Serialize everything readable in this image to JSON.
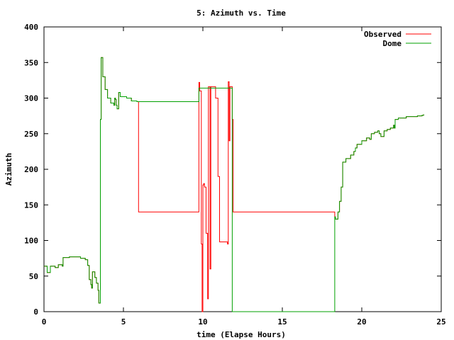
{
  "chart_data": {
    "type": "line",
    "title": "5: Azimuth vs. Time",
    "xlabel": "time (Elapse Hours)",
    "ylabel": "Azimuth",
    "xlim": [
      0,
      25
    ],
    "ylim": [
      0,
      400
    ],
    "x_ticks": [
      0,
      5,
      10,
      15,
      20,
      25
    ],
    "y_ticks": [
      0,
      50,
      100,
      150,
      200,
      250,
      300,
      350,
      400
    ],
    "grid": false,
    "legend": "top-right",
    "series": [
      {
        "name": "Observed",
        "color": "#ff0000",
        "points": [
          [
            0.0,
            64
          ],
          [
            0.2,
            55
          ],
          [
            0.35,
            55
          ],
          [
            0.4,
            64
          ],
          [
            0.6,
            64
          ],
          [
            0.7,
            62
          ],
          [
            0.9,
            66
          ],
          [
            1.1,
            66
          ],
          [
            1.15,
            64
          ],
          [
            1.2,
            76
          ],
          [
            1.6,
            77
          ],
          [
            2.0,
            77
          ],
          [
            2.3,
            75
          ],
          [
            2.6,
            73
          ],
          [
            2.75,
            65
          ],
          [
            2.85,
            45
          ],
          [
            2.95,
            38
          ],
          [
            3.0,
            33
          ],
          [
            3.05,
            56
          ],
          [
            3.2,
            48
          ],
          [
            3.3,
            40
          ],
          [
            3.4,
            30
          ],
          [
            3.45,
            12
          ],
          [
            3.55,
            270
          ],
          [
            3.6,
            357
          ],
          [
            3.7,
            330
          ],
          [
            3.85,
            312
          ],
          [
            4.0,
            300
          ],
          [
            4.2,
            293
          ],
          [
            4.4,
            290
          ],
          [
            4.45,
            300
          ],
          [
            4.5,
            298
          ],
          [
            4.55,
            290
          ],
          [
            4.6,
            285
          ],
          [
            4.7,
            308
          ],
          [
            4.8,
            302
          ],
          [
            5.0,
            302
          ],
          [
            5.2,
            300
          ],
          [
            5.4,
            300
          ],
          [
            5.5,
            296
          ],
          [
            5.85,
            295
          ],
          [
            5.9,
            295
          ],
          [
            5.95,
            140
          ],
          [
            9.7,
            140
          ],
          [
            9.75,
            322
          ],
          [
            9.8,
            310
          ],
          [
            9.9,
            95
          ],
          [
            9.95,
            0
          ],
          [
            10.0,
            178
          ],
          [
            10.05,
            180
          ],
          [
            10.1,
            175
          ],
          [
            10.2,
            110
          ],
          [
            10.3,
            18
          ],
          [
            10.35,
            316
          ],
          [
            10.45,
            60
          ],
          [
            10.5,
            316
          ],
          [
            10.75,
            316
          ],
          [
            10.8,
            300
          ],
          [
            10.95,
            190
          ],
          [
            11.05,
            98
          ],
          [
            11.5,
            98
          ],
          [
            11.55,
            95
          ],
          [
            11.6,
            323
          ],
          [
            11.65,
            240
          ],
          [
            11.7,
            316
          ],
          [
            11.8,
            316
          ],
          [
            11.85,
            270
          ],
          [
            11.9,
            140
          ],
          [
            18.2,
            140
          ],
          [
            18.3,
            133
          ],
          [
            18.35,
            130
          ],
          [
            18.5,
            140
          ],
          [
            18.6,
            155
          ],
          [
            18.7,
            175
          ],
          [
            18.8,
            210
          ],
          [
            19.0,
            215
          ],
          [
            19.3,
            220
          ],
          [
            19.5,
            225
          ],
          [
            19.6,
            230
          ],
          [
            19.7,
            235
          ],
          [
            20.0,
            240
          ],
          [
            20.3,
            244
          ],
          [
            20.5,
            242
          ],
          [
            20.6,
            250
          ],
          [
            20.8,
            252
          ],
          [
            21.0,
            254
          ],
          [
            21.1,
            250
          ],
          [
            21.2,
            246
          ],
          [
            21.4,
            254
          ],
          [
            21.6,
            256
          ],
          [
            21.8,
            258
          ],
          [
            22.0,
            262
          ],
          [
            22.05,
            258
          ],
          [
            22.1,
            270
          ],
          [
            22.3,
            272
          ],
          [
            22.6,
            272
          ],
          [
            22.8,
            274
          ],
          [
            23.2,
            274
          ],
          [
            23.5,
            275
          ],
          [
            23.8,
            276
          ],
          [
            23.9,
            277
          ]
        ]
      },
      {
        "name": "Dome",
        "color": "#00a000",
        "points": [
          [
            0.0,
            64
          ],
          [
            0.2,
            55
          ],
          [
            0.35,
            55
          ],
          [
            0.4,
            64
          ],
          [
            0.6,
            64
          ],
          [
            0.7,
            62
          ],
          [
            0.9,
            66
          ],
          [
            1.1,
            66
          ],
          [
            1.15,
            64
          ],
          [
            1.2,
            76
          ],
          [
            1.6,
            77
          ],
          [
            2.0,
            77
          ],
          [
            2.3,
            75
          ],
          [
            2.6,
            73
          ],
          [
            2.75,
            65
          ],
          [
            2.85,
            45
          ],
          [
            2.95,
            38
          ],
          [
            3.0,
            33
          ],
          [
            3.05,
            56
          ],
          [
            3.2,
            48
          ],
          [
            3.3,
            40
          ],
          [
            3.4,
            30
          ],
          [
            3.45,
            12
          ],
          [
            3.55,
            270
          ],
          [
            3.6,
            357
          ],
          [
            3.7,
            330
          ],
          [
            3.85,
            312
          ],
          [
            4.0,
            300
          ],
          [
            4.2,
            293
          ],
          [
            4.4,
            290
          ],
          [
            4.45,
            300
          ],
          [
            4.5,
            298
          ],
          [
            4.55,
            290
          ],
          [
            4.6,
            285
          ],
          [
            4.7,
            308
          ],
          [
            4.8,
            302
          ],
          [
            5.0,
            302
          ],
          [
            5.2,
            300
          ],
          [
            5.4,
            300
          ],
          [
            5.5,
            296
          ],
          [
            5.85,
            295
          ],
          [
            9.7,
            295
          ],
          [
            9.75,
            314
          ],
          [
            11.8,
            314
          ],
          [
            11.85,
            0
          ],
          [
            18.2,
            0
          ],
          [
            18.3,
            133
          ],
          [
            18.35,
            130
          ],
          [
            18.5,
            140
          ],
          [
            18.6,
            155
          ],
          [
            18.7,
            175
          ],
          [
            18.8,
            210
          ],
          [
            19.0,
            215
          ],
          [
            19.3,
            220
          ],
          [
            19.5,
            225
          ],
          [
            19.6,
            230
          ],
          [
            19.7,
            235
          ],
          [
            20.0,
            240
          ],
          [
            20.3,
            244
          ],
          [
            20.5,
            242
          ],
          [
            20.6,
            250
          ],
          [
            20.8,
            252
          ],
          [
            21.0,
            254
          ],
          [
            21.1,
            250
          ],
          [
            21.2,
            246
          ],
          [
            21.4,
            254
          ],
          [
            21.6,
            256
          ],
          [
            21.8,
            258
          ],
          [
            22.0,
            262
          ],
          [
            22.05,
            258
          ],
          [
            22.1,
            270
          ],
          [
            22.3,
            272
          ],
          [
            22.6,
            272
          ],
          [
            22.8,
            274
          ],
          [
            23.2,
            274
          ],
          [
            23.5,
            275
          ],
          [
            23.8,
            276
          ],
          [
            23.9,
            277
          ]
        ]
      }
    ]
  }
}
